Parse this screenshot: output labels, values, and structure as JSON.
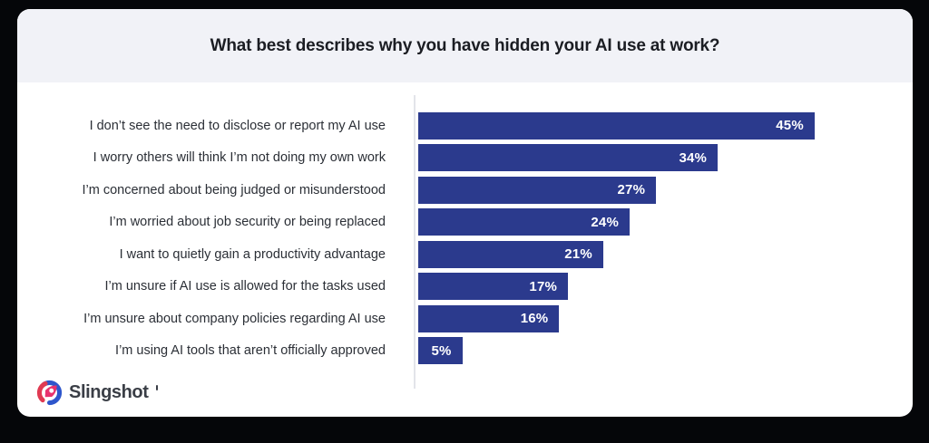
{
  "page": {
    "background_color": "#050609",
    "card_background_color": "#ffffff"
  },
  "header": {
    "title": "What best describes why you have hidden your AI use at work?",
    "background_color": "#f1f2f7"
  },
  "chart_data": {
    "type": "bar",
    "orientation": "horizontal",
    "title": "What best describes why you have hidden your AI use at work?",
    "categories": [
      "I don’t see the need to disclose or report my AI use",
      "I worry others will think I’m not doing my own work",
      "I’m concerned about being judged or misunderstood",
      "I’m worried about job security or being replaced",
      "I want to quietly gain a productivity advantage",
      "I’m unsure if AI use is allowed for the tasks used",
      "I’m unsure about company policies regarding AI use",
      "I’m using AI tools that aren’t officially approved"
    ],
    "values": [
      45,
      34,
      27,
      24,
      21,
      17,
      16,
      5
    ],
    "value_labels": [
      "45%",
      "34%",
      "27%",
      "24%",
      "21%",
      "17%",
      "16%",
      "5%"
    ],
    "xlabel": "",
    "ylabel": "",
    "xlim": [
      0,
      54
    ],
    "grid": false,
    "legend": false,
    "bar_color": "#2b3a8d",
    "value_label_color": "#ffffff",
    "category_label_color": "#2b2f36",
    "axis_line_color": "#e3e4ea",
    "value_labels_position": "inside-end"
  },
  "footer": {
    "brand": "Slingshot",
    "brand_colors": {
      "swirl_blue": "#2e56cc",
      "swirl_red": "#e03a52",
      "rocket_pink": "#e8336e",
      "text": "#3a3e46"
    }
  }
}
